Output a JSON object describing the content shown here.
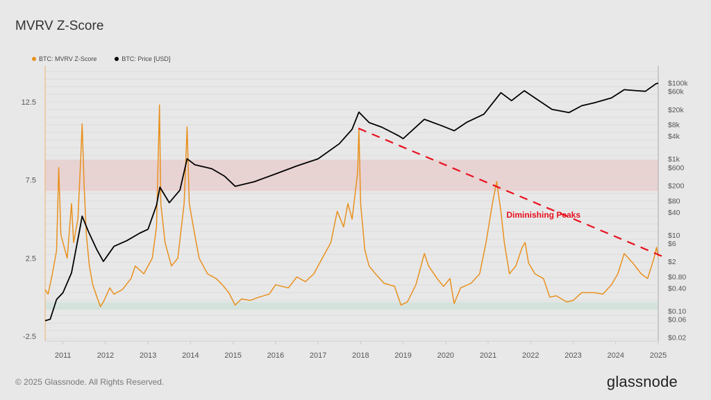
{
  "header": {
    "title": "MVRV Z-Score"
  },
  "footer": {
    "copyright": "© 2025 Glassnode. All Rights Reserved.",
    "logo": "glassnode"
  },
  "colors": {
    "zscore": "#e8901e",
    "price": "#000000",
    "trend": "#e8101e",
    "red_band": "#e9d2d2",
    "green_band": "#d5e3dd",
    "background": "#e8e8e8"
  },
  "chart_data": {
    "type": "line",
    "title": "MVRV Z-Score",
    "legend": {
      "placement": "top-left",
      "items": [
        {
          "name": "BTC: MVRV Z-Score",
          "color": "#e8901e"
        },
        {
          "name": "BTC: Price [USD]",
          "color": "#000000"
        }
      ]
    },
    "x_ticks": [
      "2011",
      "2012",
      "2013",
      "2014",
      "2015",
      "2016",
      "2017",
      "2018",
      "2019",
      "2020",
      "2021",
      "2022",
      "2023",
      "2024",
      "2025"
    ],
    "xlim": [
      2010.58,
      2025.0
    ],
    "left_axis": {
      "ylim": [
        -2.8,
        14.8
      ],
      "ticks": [
        "12.5",
        "7.5",
        "2.5",
        "-2.5"
      ],
      "tick_values": [
        12.5,
        7.5,
        2.5,
        -2.5
      ]
    },
    "right_axis": {
      "scale": "log",
      "ylim": [
        0.016,
        280000
      ],
      "ticks": [
        "$100k",
        "$60k",
        "$20k",
        "$8k",
        "$4k",
        "$1k",
        "$600",
        "$200",
        "$80",
        "$40",
        "$10",
        "$6",
        "$2",
        "$0.80",
        "$0.40",
        "$0.10",
        "$0.06",
        "$0.02"
      ],
      "tick_values": [
        100000,
        60000,
        20000,
        8000,
        4000,
        1000,
        600,
        200,
        80,
        40,
        10,
        6,
        2,
        0.8,
        0.4,
        0.1,
        0.06,
        0.02
      ]
    },
    "bands": [
      {
        "type": "overvalued",
        "from": 6.8,
        "to": 8.8,
        "color": "#e9d2d2"
      },
      {
        "type": "undervalued",
        "from": -0.8,
        "to": -0.3,
        "color": "#d5e3dd"
      }
    ],
    "grid": true,
    "series": [
      {
        "name": "BTC: MVRV Z-Score",
        "axis": "left",
        "x": [
          2010.58,
          2010.65,
          2010.75,
          2010.85,
          2010.9,
          2010.95,
          2011.0,
          2011.1,
          2011.2,
          2011.25,
          2011.35,
          2011.42,
          2011.45,
          2011.5,
          2011.55,
          2011.62,
          2011.7,
          2011.8,
          2011.88,
          2011.95,
          2012.1,
          2012.2,
          2012.4,
          2012.6,
          2012.7,
          2012.9,
          2013.1,
          2013.2,
          2013.27,
          2013.3,
          2013.4,
          2013.55,
          2013.7,
          2013.85,
          2013.92,
          2013.97,
          2014.1,
          2014.2,
          2014.4,
          2014.6,
          2014.75,
          2014.9,
          2015.05,
          2015.2,
          2015.4,
          2015.6,
          2015.85,
          2016.0,
          2016.3,
          2016.5,
          2016.7,
          2016.9,
          2017.1,
          2017.3,
          2017.45,
          2017.6,
          2017.7,
          2017.8,
          2017.93,
          2017.96,
          2018.0,
          2018.1,
          2018.2,
          2018.35,
          2018.55,
          2018.8,
          2018.95,
          2019.1,
          2019.3,
          2019.5,
          2019.6,
          2019.8,
          2019.95,
          2020.1,
          2020.2,
          2020.35,
          2020.6,
          2020.8,
          2020.95,
          2021.1,
          2021.2,
          2021.3,
          2021.38,
          2021.5,
          2021.65,
          2021.8,
          2021.87,
          2021.95,
          2022.1,
          2022.3,
          2022.45,
          2022.6,
          2022.85,
          2023.0,
          2023.2,
          2023.5,
          2023.7,
          2023.9,
          2024.05,
          2024.2,
          2024.4,
          2024.6,
          2024.75,
          2024.9,
          2024.96,
          2025.0
        ],
        "values": [
          0.5,
          0.2,
          1.5,
          3,
          8.3,
          4,
          3.5,
          2.5,
          6,
          3.5,
          5,
          9,
          11.1,
          7,
          4,
          2,
          0.8,
          0,
          -0.6,
          -0.3,
          0.6,
          0.2,
          0.5,
          1.2,
          2,
          1.5,
          2.5,
          4.5,
          12.3,
          6,
          3.5,
          2,
          2.5,
          6,
          10.9,
          6,
          4,
          2.5,
          1.5,
          1.2,
          0.8,
          0.3,
          -0.5,
          -0.1,
          -0.2,
          0,
          0.2,
          0.8,
          0.6,
          1.3,
          1.0,
          1.5,
          2.5,
          3.5,
          5.5,
          4.5,
          6,
          5,
          8,
          10.8,
          6,
          3,
          2,
          1.5,
          0.9,
          0.7,
          -0.5,
          -0.3,
          0.8,
          2.8,
          2,
          1.2,
          0.7,
          1.2,
          -0.4,
          0.6,
          0.9,
          1.5,
          3.5,
          6,
          7.4,
          5.5,
          3.5,
          1.5,
          2,
          3.2,
          3.5,
          2.2,
          1.5,
          1.2,
          0,
          0.1,
          -0.3,
          -0.2,
          0.3,
          0.3,
          0.2,
          0.8,
          1.5,
          2.8,
          2.2,
          1.5,
          1.2,
          2.5,
          3.2,
          2.6
        ]
      },
      {
        "name": "BTC: Price [USD]",
        "axis": "right",
        "x": [
          2010.58,
          2010.7,
          2010.85,
          2011.0,
          2011.2,
          2011.4,
          2011.45,
          2011.6,
          2011.8,
          2011.95,
          2012.2,
          2012.5,
          2012.8,
          2013.0,
          2013.2,
          2013.28,
          2013.5,
          2013.75,
          2013.92,
          2014.1,
          2014.5,
          2014.8,
          2015.05,
          2015.5,
          2016.0,
          2016.5,
          2017.0,
          2017.5,
          2017.8,
          2017.96,
          2018.2,
          2018.5,
          2018.9,
          2019.0,
          2019.5,
          2019.9,
          2020.2,
          2020.5,
          2020.9,
          2021.3,
          2021.55,
          2021.85,
          2022.1,
          2022.5,
          2022.9,
          2023.2,
          2023.5,
          2023.9,
          2024.2,
          2024.5,
          2024.7,
          2024.95,
          2025.0
        ],
        "values": [
          0.055,
          0.06,
          0.2,
          0.3,
          1,
          15,
          31,
          12,
          4,
          2,
          5,
          7,
          11,
          14,
          60,
          180,
          70,
          150,
          1000,
          700,
          550,
          350,
          190,
          250,
          400,
          650,
          1000,
          2500,
          6000,
          17000,
          9000,
          6800,
          4000,
          3400,
          11000,
          7500,
          5500,
          9200,
          15000,
          55000,
          34000,
          62000,
          40000,
          20000,
          16500,
          25000,
          30000,
          40000,
          66000,
          62000,
          60000,
          95000,
          98000
        ]
      },
      {
        "name": "Diminishing Peaks",
        "axis": "left",
        "style": "dashed",
        "x": [
          2017.95,
          2025.2
        ],
        "values": [
          10.8,
          2.5
        ]
      }
    ],
    "annotations": [
      {
        "text": "Diminishing Peaks",
        "color": "#e8101e",
        "x": 2022.3,
        "y": 5.1
      }
    ]
  }
}
